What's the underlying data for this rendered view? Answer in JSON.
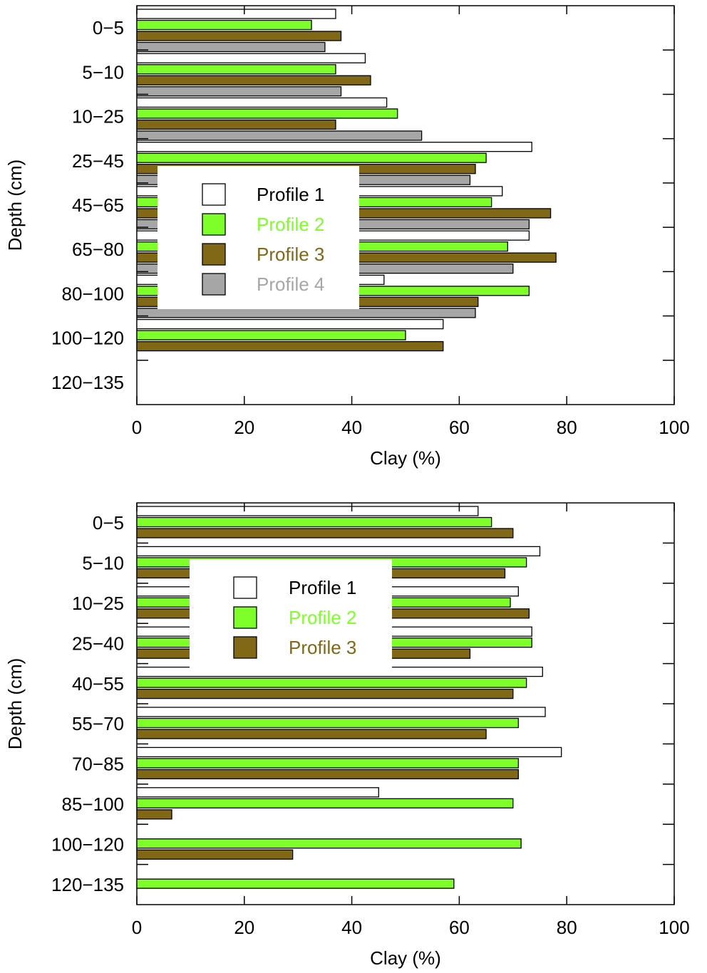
{
  "chart_data": [
    {
      "type": "bar",
      "orientation": "horizontal",
      "xlabel": "Clay (%)",
      "ylabel": "Depth (cm)",
      "xlim": [
        0,
        100
      ],
      "xticks": [
        "0",
        "20",
        "40",
        "60",
        "80",
        "100"
      ],
      "categories": [
        "0−5",
        "5−10",
        "10−25",
        "25−45",
        "45−65",
        "65−80",
        "80−100",
        "100−120",
        "120−135"
      ],
      "legend_position": "center-left",
      "series": [
        {
          "name": "Profile 1",
          "color": "#ffffff",
          "text_color": "#000000",
          "values": [
            37,
            42.5,
            46.5,
            73.5,
            68,
            73,
            46,
            57,
            null
          ]
        },
        {
          "name": "Profile 2",
          "color": "#7fff2a",
          "text_color": "#7fff2a",
          "values": [
            32.5,
            37,
            48.5,
            65,
            66,
            69,
            73,
            50,
            null
          ]
        },
        {
          "name": "Profile 3",
          "color": "#806816",
          "text_color": "#806816",
          "values": [
            38,
            43.5,
            37,
            63,
            77,
            78,
            63.5,
            57,
            null
          ]
        },
        {
          "name": "Profile 4",
          "color": "#a6a6a6",
          "text_color": "#a6a6a6",
          "values": [
            35,
            38,
            53,
            62,
            73,
            70,
            63,
            null,
            null
          ]
        }
      ]
    },
    {
      "type": "bar",
      "orientation": "horizontal",
      "xlabel": "Clay (%)",
      "ylabel": "Depth (cm)",
      "xlim": [
        0,
        100
      ],
      "xticks": [
        "0",
        "20",
        "40",
        "60",
        "80",
        "100"
      ],
      "categories": [
        "0−5",
        "5−10",
        "10−25",
        "25−40",
        "40−55",
        "55−70",
        "70−85",
        "85−100",
        "100−120",
        "120−135"
      ],
      "legend_position": "upper-center",
      "series": [
        {
          "name": "Profile 1",
          "color": "#ffffff",
          "text_color": "#000000",
          "values": [
            63.5,
            75,
            71,
            73.5,
            75.5,
            76,
            79,
            45,
            null,
            null
          ]
        },
        {
          "name": "Profile 2",
          "color": "#7fff2a",
          "text_color": "#7fff2a",
          "values": [
            66,
            72.5,
            69.5,
            73.5,
            72.5,
            71,
            71,
            70,
            71.5,
            59
          ]
        },
        {
          "name": "Profile 3",
          "color": "#806816",
          "text_color": "#806816",
          "values": [
            70,
            68.5,
            73,
            62,
            70,
            65,
            71,
            6.5,
            29,
            null
          ]
        }
      ]
    }
  ]
}
